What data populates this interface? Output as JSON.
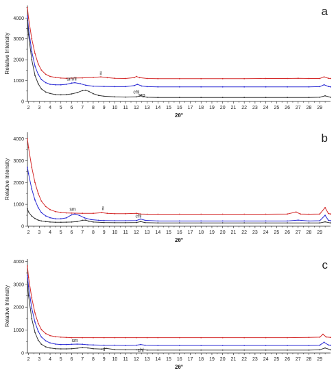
{
  "chart_data": [
    {
      "type": "line",
      "panel_label": "a",
      "xlabel": "2θ°",
      "ylabel": "Relative Intensity",
      "xlim": [
        1.9,
        30.0
      ],
      "ylim": [
        0,
        4600
      ],
      "xticks": [
        2,
        3,
        4,
        5,
        6,
        7,
        8,
        9,
        10,
        11,
        12,
        13,
        14,
        15,
        16,
        17,
        18,
        19,
        20,
        21,
        22,
        23,
        24,
        25,
        26,
        27,
        28,
        29
      ],
      "yticks": [
        0,
        1000,
        2000,
        3000,
        4000
      ],
      "series": [
        {
          "color": "#d42a2a",
          "x": [
            1.9,
            2.0,
            2.3,
            2.6,
            2.9,
            3.2,
            3.6,
            4.0,
            4.5,
            5.0,
            5.5,
            6.0,
            7.0,
            8.0,
            8.7,
            9.3,
            10.0,
            11.0,
            11.8,
            12.0,
            12.3,
            13.0,
            14.0,
            16.0,
            18.0,
            20.0,
            22.0,
            24.0,
            26.0,
            27.0,
            28.0,
            29.0,
            29.4,
            29.8,
            30.0
          ],
          "y": [
            4500,
            4000,
            3000,
            2300,
            1800,
            1500,
            1300,
            1200,
            1150,
            1120,
            1110,
            1120,
            1130,
            1150,
            1180,
            1140,
            1110,
            1100,
            1140,
            1200,
            1140,
            1100,
            1090,
            1090,
            1090,
            1090,
            1090,
            1100,
            1100,
            1110,
            1100,
            1100,
            1180,
            1110,
            1100
          ]
        },
        {
          "color": "#2a2ad4",
          "x": [
            1.9,
            2.0,
            2.3,
            2.6,
            2.9,
            3.2,
            3.6,
            4.0,
            4.5,
            5.0,
            5.5,
            6.0,
            6.3,
            6.8,
            7.3,
            8.0,
            9.0,
            10.0,
            11.0,
            11.8,
            12.1,
            12.5,
            13.0,
            14.0,
            16.0,
            18.0,
            20.0,
            22.0,
            24.0,
            26.0,
            28.0,
            29.0,
            29.4,
            29.8,
            30.0
          ],
          "y": [
            4100,
            3500,
            2400,
            1700,
            1300,
            1050,
            900,
            820,
            800,
            800,
            820,
            880,
            900,
            850,
            780,
            730,
            720,
            710,
            710,
            760,
            820,
            740,
            710,
            700,
            700,
            700,
            700,
            700,
            700,
            700,
            700,
            710,
            800,
            720,
            700
          ]
        },
        {
          "color": "#333333",
          "x": [
            1.9,
            2.0,
            2.3,
            2.6,
            2.9,
            3.2,
            3.6,
            4.0,
            4.5,
            5.0,
            5.5,
            6.0,
            6.5,
            7.0,
            7.3,
            7.6,
            8.0,
            8.5,
            9.0,
            10.0,
            11.0,
            12.0,
            12.4,
            12.7,
            13.0,
            14.0,
            16.0,
            18.0,
            20.0,
            22.0,
            24.0,
            26.0,
            28.0,
            29.0,
            29.5,
            30.0
          ],
          "y": [
            3900,
            3200,
            2000,
            1250,
            850,
            600,
            450,
            380,
            330,
            320,
            330,
            360,
            420,
            520,
            540,
            480,
            370,
            290,
            250,
            220,
            210,
            220,
            280,
            230,
            200,
            190,
            190,
            190,
            190,
            190,
            190,
            190,
            190,
            200,
            270,
            200
          ]
        }
      ],
      "annotations": [
        {
          "text": "sm/il",
          "x": 6.0,
          "y": 1000
        },
        {
          "text": "il",
          "x": 8.7,
          "y": 1260
        },
        {
          "text": "chl",
          "x": 12.0,
          "y": 380
        },
        {
          "text": "srp",
          "x": 12.5,
          "y": 230
        }
      ]
    },
    {
      "type": "line",
      "panel_label": "b",
      "xlabel": "2θ°",
      "ylabel": "Relative Intensity",
      "xlim": [
        1.9,
        30.0
      ],
      "ylim": [
        0,
        4300
      ],
      "xticks": [
        2,
        3,
        4,
        5,
        6,
        7,
        8,
        9,
        10,
        11,
        12,
        13,
        14,
        15,
        16,
        17,
        18,
        19,
        20,
        21,
        22,
        23,
        24,
        25,
        26,
        27,
        28,
        29
      ],
      "yticks": [
        0,
        1000,
        2000,
        3000,
        4000
      ],
      "series": [
        {
          "color": "#d42a2a",
          "x": [
            1.9,
            2.0,
            2.3,
            2.6,
            2.9,
            3.2,
            3.6,
            4.0,
            4.5,
            5.0,
            5.5,
            6.0,
            7.0,
            8.0,
            8.8,
            9.3,
            10.0,
            11.0,
            12.0,
            12.4,
            13.0,
            14.0,
            16.0,
            18.0,
            20.0,
            22.0,
            24.0,
            26.0,
            26.8,
            27.2,
            28.0,
            29.0,
            29.5,
            29.8,
            30.0
          ],
          "y": [
            4000,
            3600,
            2700,
            2000,
            1500,
            1150,
            900,
            760,
            670,
            630,
            610,
            600,
            590,
            590,
            620,
            590,
            570,
            570,
            590,
            560,
            550,
            550,
            550,
            550,
            550,
            550,
            550,
            560,
            650,
            560,
            550,
            560,
            850,
            580,
            560
          ]
        },
        {
          "color": "#2a2ad4",
          "x": [
            1.9,
            2.0,
            2.3,
            2.6,
            2.9,
            3.2,
            3.6,
            4.0,
            4.5,
            5.0,
            5.5,
            6.0,
            6.3,
            6.7,
            7.2,
            7.8,
            8.5,
            9.0,
            10.0,
            11.0,
            12.0,
            12.4,
            12.8,
            14.0,
            16.0,
            18.0,
            20.0,
            22.0,
            24.0,
            26.0,
            27.0,
            28.0,
            29.0,
            29.5,
            29.8,
            30.0
          ],
          "y": [
            2700,
            2400,
            1700,
            1200,
            850,
            620,
            470,
            390,
            340,
            340,
            380,
            520,
            560,
            500,
            380,
            300,
            270,
            260,
            250,
            250,
            260,
            330,
            270,
            240,
            240,
            240,
            240,
            240,
            240,
            240,
            280,
            240,
            250,
            500,
            270,
            250
          ]
        },
        {
          "color": "#333333",
          "x": [
            1.9,
            2.0,
            2.3,
            2.6,
            2.9,
            3.2,
            3.6,
            4.0,
            4.5,
            5.0,
            5.5,
            6.0,
            6.5,
            7.0,
            7.3,
            7.6,
            8.0,
            9.0,
            10.0,
            11.0,
            12.0,
            12.4,
            12.8,
            14.0,
            16.0,
            18.0,
            20.0,
            22.0,
            24.0,
            26.0,
            28.0,
            29.0,
            29.5,
            30.0
          ],
          "y": [
            800,
            650,
            460,
            350,
            280,
            240,
            210,
            190,
            180,
            180,
            185,
            190,
            210,
            270,
            280,
            230,
            190,
            170,
            160,
            160,
            170,
            210,
            165,
            150,
            150,
            150,
            150,
            150,
            150,
            150,
            150,
            150,
            200,
            150
          ]
        }
      ],
      "annotations": [
        {
          "text": "sm",
          "x": 6.1,
          "y": 700
        },
        {
          "text": "il",
          "x": 8.9,
          "y": 740
        },
        {
          "text": "chl",
          "x": 12.2,
          "y": 400
        }
      ]
    },
    {
      "type": "line",
      "panel_label": "c",
      "xlabel": "2θ°",
      "ylabel": "Relative Intensity",
      "xlim": [
        1.9,
        30.0
      ],
      "ylim": [
        0,
        4100
      ],
      "xticks": [
        2,
        3,
        4,
        5,
        6,
        7,
        8,
        9,
        10,
        11,
        12,
        13,
        14,
        15,
        16,
        17,
        18,
        19,
        20,
        21,
        22,
        23,
        24,
        25,
        26,
        27,
        28,
        29
      ],
      "yticks": [
        0,
        1000,
        2000,
        3000,
        4000
      ],
      "series": [
        {
          "color": "#d42a2a",
          "x": [
            1.9,
            2.0,
            2.3,
            2.6,
            2.9,
            3.2,
            3.6,
            4.0,
            4.5,
            5.0,
            5.5,
            6.0,
            7.0,
            8.0,
            9.0,
            10.0,
            11.0,
            12.0,
            13.0,
            14.0,
            16.0,
            18.0,
            20.0,
            22.0,
            24.0,
            26.0,
            28.0,
            29.0,
            29.3,
            29.6,
            30.0
          ],
          "y": [
            3800,
            3300,
            2400,
            1750,
            1300,
            1020,
            850,
            760,
            710,
            690,
            680,
            670,
            670,
            670,
            670,
            670,
            670,
            670,
            670,
            670,
            670,
            670,
            670,
            670,
            670,
            670,
            680,
            690,
            820,
            700,
            680
          ]
        },
        {
          "color": "#2a2ad4",
          "x": [
            1.9,
            2.0,
            2.3,
            2.6,
            2.9,
            3.2,
            3.6,
            4.0,
            4.5,
            5.0,
            5.5,
            6.0,
            6.5,
            7.0,
            7.5,
            8.0,
            9.0,
            10.0,
            11.0,
            12.0,
            12.4,
            12.8,
            14.0,
            16.0,
            18.0,
            20.0,
            22.0,
            24.0,
            26.0,
            28.0,
            29.0,
            29.4,
            29.8,
            30.0
          ],
          "y": [
            3400,
            2900,
            1950,
            1350,
            950,
            700,
            530,
            440,
            390,
            370,
            370,
            380,
            390,
            380,
            360,
            350,
            340,
            340,
            330,
            340,
            370,
            340,
            330,
            330,
            330,
            330,
            330,
            330,
            330,
            330,
            340,
            470,
            350,
            340
          ]
        },
        {
          "color": "#333333",
          "x": [
            1.9,
            2.0,
            2.3,
            2.6,
            2.9,
            3.2,
            3.6,
            4.0,
            4.5,
            5.0,
            5.5,
            6.0,
            6.5,
            7.0,
            7.5,
            8.0,
            8.8,
            9.2,
            10.0,
            11.0,
            12.0,
            12.5,
            13.0,
            14.0,
            16.0,
            18.0,
            20.0,
            22.0,
            24.0,
            26.0,
            28.0,
            29.0,
            29.5,
            30.0
          ],
          "y": [
            3100,
            2500,
            1500,
            900,
            560,
            380,
            270,
            220,
            190,
            180,
            180,
            190,
            210,
            240,
            220,
            190,
            170,
            200,
            150,
            140,
            140,
            160,
            130,
            130,
            130,
            130,
            130,
            130,
            130,
            130,
            130,
            140,
            220,
            140
          ]
        }
      ],
      "annotations": [
        {
          "text": "sm",
          "x": 6.3,
          "y": 480
        },
        {
          "text": "il",
          "x": 9.0,
          "y": 90
        },
        {
          "text": "chl",
          "x": 12.4,
          "y": 60
        }
      ]
    }
  ]
}
